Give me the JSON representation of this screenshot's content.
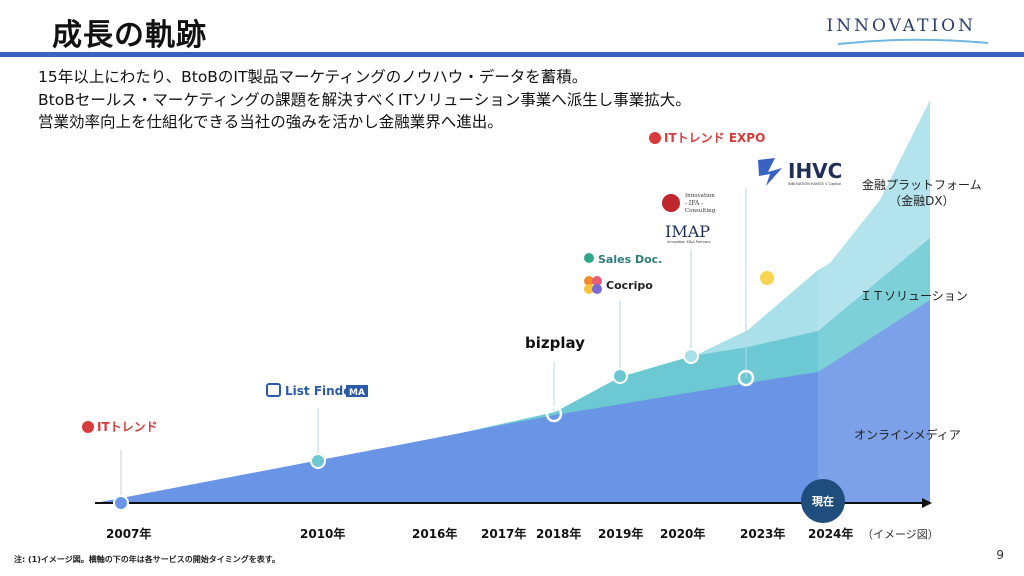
{
  "header": {
    "title": "成長の軌跡",
    "brand": "INNOVATION"
  },
  "intro": [
    "15年以上にわたり、BtoBのIT製品マーケティングのノウハウ・データを蓄積。",
    "BtoBセールス・マーケティングの課題を解決すべくITソリューション事業へ派生し事業拡大。",
    "営業効率向上を仕組化できる当社の強みを活かし金融業界へ進出。"
  ],
  "segments": {
    "finance_line1": "金融プラットフォーム",
    "finance_line2": "（金融DX）",
    "it_solution": "ＩＴソリューション",
    "online_media": "オンラインメディア"
  },
  "logos": {
    "itrend": "ITトレンド",
    "listfinder": "List Finder",
    "listfinder_badge": "MA",
    "bizplay": "bizplay",
    "salesdoc": "Sales Doc.",
    "cocripo": "Cocripo",
    "ifa_line1": "Innovation",
    "ifa_line2": "- IFA -",
    "ifa_line3": "Consulting",
    "imap": "IMAP",
    "imap_sub": "Innovation M&A Partners",
    "itrend_expo": "ITトレンド EXPO",
    "ihvc": "IHVC",
    "ihvc_sub": "INNOVATION HAYATE V Capital"
  },
  "timeline": {
    "years": [
      "2007年",
      "2010年",
      "2016年",
      "2017年",
      "2018年",
      "2019年",
      "2020年",
      "2023年",
      "2024年"
    ],
    "current": "現在",
    "image_note": "（イメージ図）"
  },
  "colors": {
    "online_media": "#6a95e6",
    "it_solution": "#6cc9d3",
    "finance": "#a9e0ea",
    "header_rule": "#3a62c0",
    "current_badge": "#1f4e7d",
    "marker_yellow": "#f7d54e"
  },
  "footnote": "注: (1)イメージ図。横軸の下の年は各サービスの開始タイミングを表す。",
  "page_number": "9"
}
